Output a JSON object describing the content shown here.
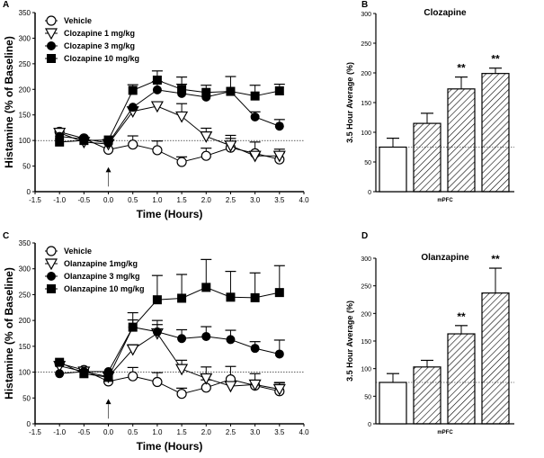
{
  "chart_data": [
    {
      "panel": "A",
      "type": "line",
      "xlabel": "Time (Hours)",
      "ylabel": "Histamine (% of Baseline)",
      "xlim": [
        -1.5,
        4.0
      ],
      "ylim": [
        0,
        350
      ],
      "xticks": [
        "-1.5",
        "-1.0",
        "-0.5",
        "0.0",
        "0.5",
        "1.0",
        "1.5",
        "2.0",
        "2.5",
        "3.0",
        "3.5",
        "4.0"
      ],
      "yticks": [
        "0",
        "50",
        "100",
        "150",
        "200",
        "250",
        "300",
        "350"
      ],
      "x": [
        -1,
        -0.5,
        0,
        0.5,
        1,
        1.5,
        2,
        2.5,
        3,
        3.5
      ],
      "reference_line": 100,
      "arrow_at": 0,
      "series": [
        {
          "name": "Vehicle",
          "marker": "open-circle",
          "values": [
            117,
            104,
            82,
            92,
            81,
            58,
            70,
            86,
            75,
            63
          ],
          "err_upper": [
            null,
            null,
            null,
            109,
            99,
            68,
            85,
            110,
            97,
            76
          ]
        },
        {
          "name": "Clozapine 1 mg/kg",
          "marker": "open-triangle-down",
          "values": [
            115,
            97,
            93,
            157,
            167,
            147,
            108,
            90,
            70,
            70
          ],
          "err_upper": [
            null,
            null,
            null,
            null,
            null,
            172,
            124,
            104,
            null,
            83
          ]
        },
        {
          "name": "Clozapine 3 mg/kg",
          "marker": "filled-circle",
          "values": [
            108,
            103,
            95,
            165,
            199,
            192,
            185,
            196,
            146,
            128
          ],
          "err_upper": [
            null,
            null,
            null,
            null,
            215,
            210,
            null,
            null,
            156,
            141
          ]
        },
        {
          "name": "Clozapine 10 mg/kg",
          "marker": "filled-square",
          "values": [
            97,
            100,
            101,
            198,
            218,
            200,
            194,
            196,
            187,
            197
          ],
          "err_upper": [
            null,
            null,
            null,
            209,
            236,
            224,
            208,
            225,
            208,
            210
          ]
        }
      ]
    },
    {
      "panel": "B",
      "type": "bar",
      "title": "Clozapine",
      "xlabel": "mPFC",
      "ylabel": "3.5 Hour Average (%)",
      "ylim": [
        0,
        300
      ],
      "yticks": [
        "0",
        "50",
        "100",
        "150",
        "200",
        "250",
        "300"
      ],
      "reference_line": 75,
      "values": [
        75,
        115,
        173,
        199
      ],
      "err": [
        15,
        17,
        20,
        9
      ],
      "fills": [
        "open",
        "hatched",
        "hatched",
        "hatched"
      ],
      "annotations": [
        "",
        "",
        "**",
        "**"
      ]
    },
    {
      "panel": "C",
      "type": "line",
      "xlabel": "Time (Hours)",
      "ylabel": "Histamine (% of Baseline)",
      "xlim": [
        -1.5,
        4.0
      ],
      "ylim": [
        0,
        350
      ],
      "xticks": [
        "-1.5",
        "-1.0",
        "-0.5",
        "0.0",
        "0.5",
        "1.0",
        "1.5",
        "2.0",
        "2.5",
        "3.0",
        "3.5",
        "4.0"
      ],
      "yticks": [
        "0",
        "50",
        "100",
        "150",
        "200",
        "250",
        "300",
        "350"
      ],
      "x": [
        -1,
        -0.5,
        0,
        0.5,
        1,
        1.5,
        2,
        2.5,
        3,
        3.5
      ],
      "reference_line": 100,
      "arrow_at": 0,
      "series": [
        {
          "name": "Vehicle",
          "marker": "open-circle",
          "values": [
            117,
            104,
            82,
            92,
            81,
            58,
            70,
            86,
            74,
            63
          ],
          "err_upper": [
            null,
            null,
            null,
            109,
            99,
            69,
            85,
            111,
            97,
            79
          ]
        },
        {
          "name": "Olanzapine 1mg/kg",
          "marker": "open-triangle-down",
          "values": [
            112,
            101,
            91,
            144,
            175,
            106,
            88,
            73,
            76,
            67
          ],
          "err_upper": [
            null,
            null,
            null,
            153,
            192,
            123,
            110,
            null,
            null,
            80
          ]
        },
        {
          "name": "Olanzapine 3 mg/kg",
          "marker": "filled-circle",
          "values": [
            97,
            101,
            101,
            187,
            178,
            165,
            169,
            163,
            146,
            135
          ],
          "err_upper": [
            null,
            null,
            null,
            201,
            200,
            182,
            188,
            181,
            159,
            162
          ]
        },
        {
          "name": "Olanzapine 10 mg/kg",
          "marker": "filled-square",
          "values": [
            119,
            97,
            90,
            187,
            240,
            243,
            264,
            245,
            244,
            254
          ],
          "err_upper": [
            null,
            null,
            null,
            215,
            287,
            289,
            318,
            295,
            292,
            306
          ]
        }
      ]
    },
    {
      "panel": "D",
      "type": "bar",
      "title": "Olanzapine",
      "xlabel": "mPFC",
      "ylabel": "3.5 Hour Average (%)",
      "ylim": [
        0,
        300
      ],
      "yticks": [
        "0",
        "50",
        "100",
        "150",
        "200",
        "250",
        "300"
      ],
      "reference_line": 75,
      "values": [
        75,
        103,
        163,
        237
      ],
      "err": [
        16,
        12,
        15,
        45
      ],
      "fills": [
        "open",
        "hatched",
        "hatched",
        "hatched"
      ],
      "annotations": [
        "",
        "",
        "**",
        "**"
      ]
    }
  ]
}
